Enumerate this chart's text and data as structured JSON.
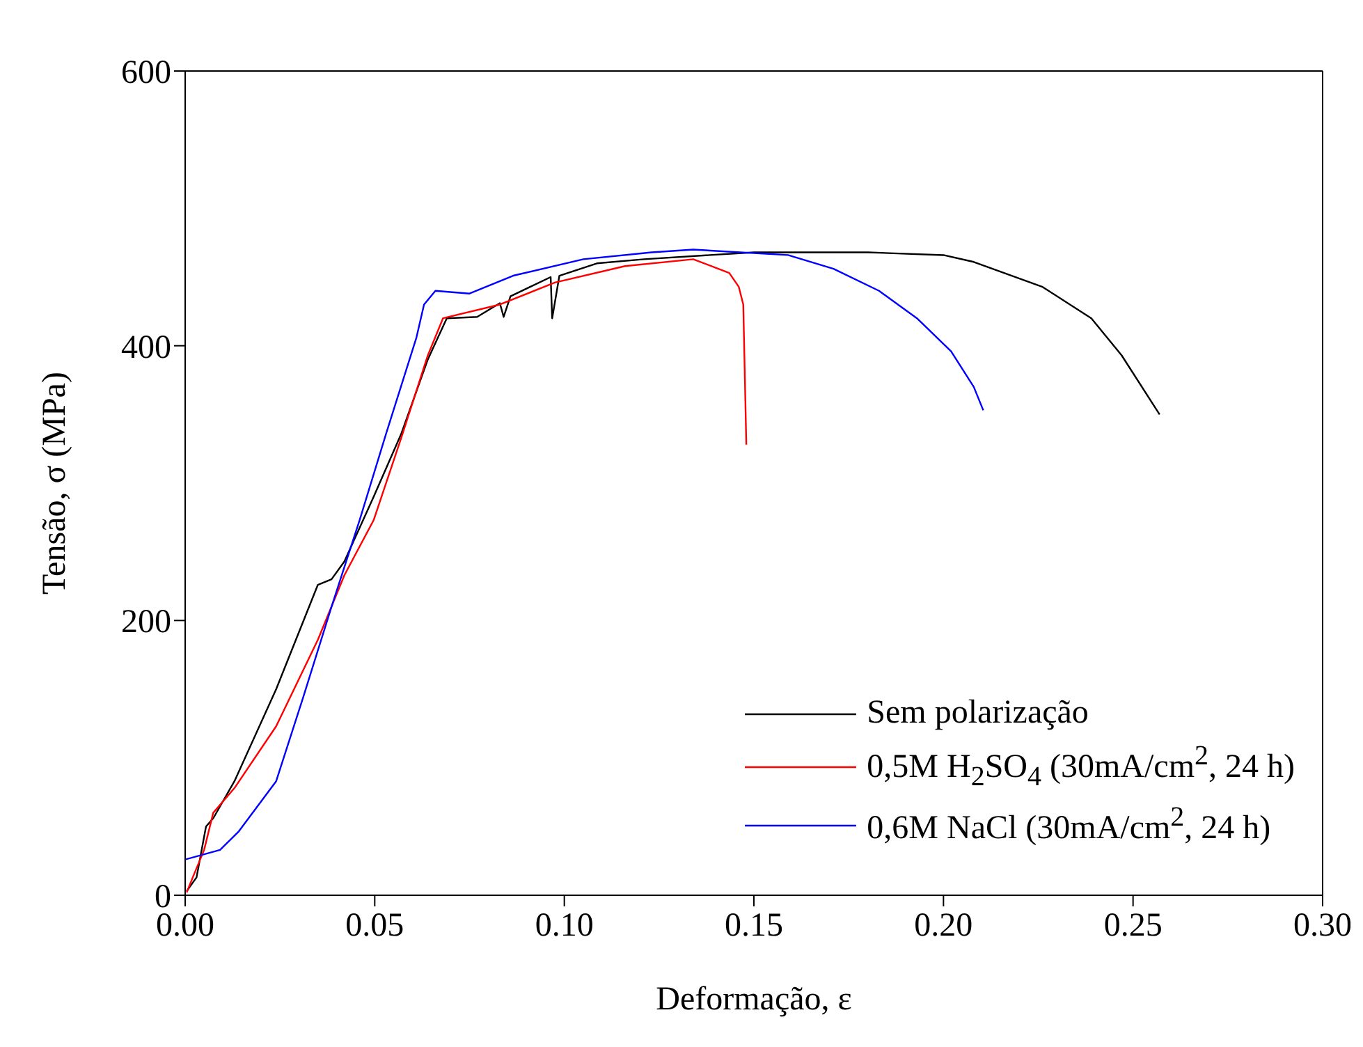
{
  "chart_data": {
    "type": "line",
    "xlabel": "Deformação, ε",
    "ylabel": "Tensão, σ (MPa)",
    "xlim": [
      0,
      0.3
    ],
    "ylim": [
      0,
      600
    ],
    "xticks": [
      {
        "value": 0,
        "label": "0.00"
      },
      {
        "value": 0.05,
        "label": "0.05"
      },
      {
        "value": 0.1,
        "label": "0.10"
      },
      {
        "value": 0.15,
        "label": "0.15"
      },
      {
        "value": 0.2,
        "label": "0.20"
      },
      {
        "value": 0.25,
        "label": "0.25"
      },
      {
        "value": 0.3,
        "label": "0.30"
      }
    ],
    "yticks": [
      0,
      200,
      400,
      600
    ],
    "grid": false,
    "legend": "bottom right",
    "marker": "none",
    "line_style": "solid",
    "series": [
      {
        "name": "Sem polarização",
        "color": "#000000",
        "x": [
          0.0004,
          0.003,
          0.0055,
          0.0074,
          0.013,
          0.024,
          0.035,
          0.0386,
          0.042,
          0.0497,
          0.057,
          0.064,
          0.069,
          0.077,
          0.083,
          0.084,
          0.0858,
          0.0964,
          0.0968,
          0.0987,
          0.1086,
          0.121,
          0.15,
          0.18,
          0.2,
          0.208,
          0.226,
          0.239,
          0.247,
          0.257
        ],
        "values": [
          3,
          13,
          50,
          56,
          83,
          150,
          226,
          230,
          243,
          290,
          336,
          390,
          420,
          421,
          431,
          421,
          436,
          450,
          420,
          451,
          460,
          463,
          468,
          468,
          466,
          461,
          443,
          420,
          393,
          350
        ]
      },
      {
        "name": "0,5M H$_{2}$SO$_{4}$ (30mA/cm$^{2}$, 24 h)",
        "color": "#ff0000",
        "x": [
          0.0004,
          0.002,
          0.005,
          0.0074,
          0.013,
          0.024,
          0.035,
          0.042,
          0.0497,
          0.057,
          0.064,
          0.068,
          0.083,
          0.0975,
          0.116,
          0.134,
          0.1435,
          0.146,
          0.1472,
          0.148
        ],
        "values": [
          2,
          13,
          33,
          60,
          78,
          123,
          186,
          233,
          273,
          333,
          393,
          420,
          430,
          446,
          458,
          463,
          453,
          443,
          430,
          328
        ]
      },
      {
        "name": "0,6M NaCl (30mA/cm$^{2}$, 24 h)",
        "color": "#0000ff",
        "x": [
          0,
          0.0092,
          0.014,
          0.024,
          0.031,
          0.0386,
          0.046,
          0.053,
          0.061,
          0.063,
          0.066,
          0.075,
          0.0865,
          0.105,
          0.123,
          0.134,
          0.159,
          0.171,
          0.183,
          0.193,
          0.202,
          0.208,
          0.2105
        ],
        "values": [
          26,
          33,
          46,
          83,
          143,
          210,
          273,
          336,
          406,
          430,
          440,
          438,
          451,
          463,
          468,
          470,
          466,
          456,
          440,
          420,
          396,
          370,
          353
        ]
      }
    ]
  }
}
